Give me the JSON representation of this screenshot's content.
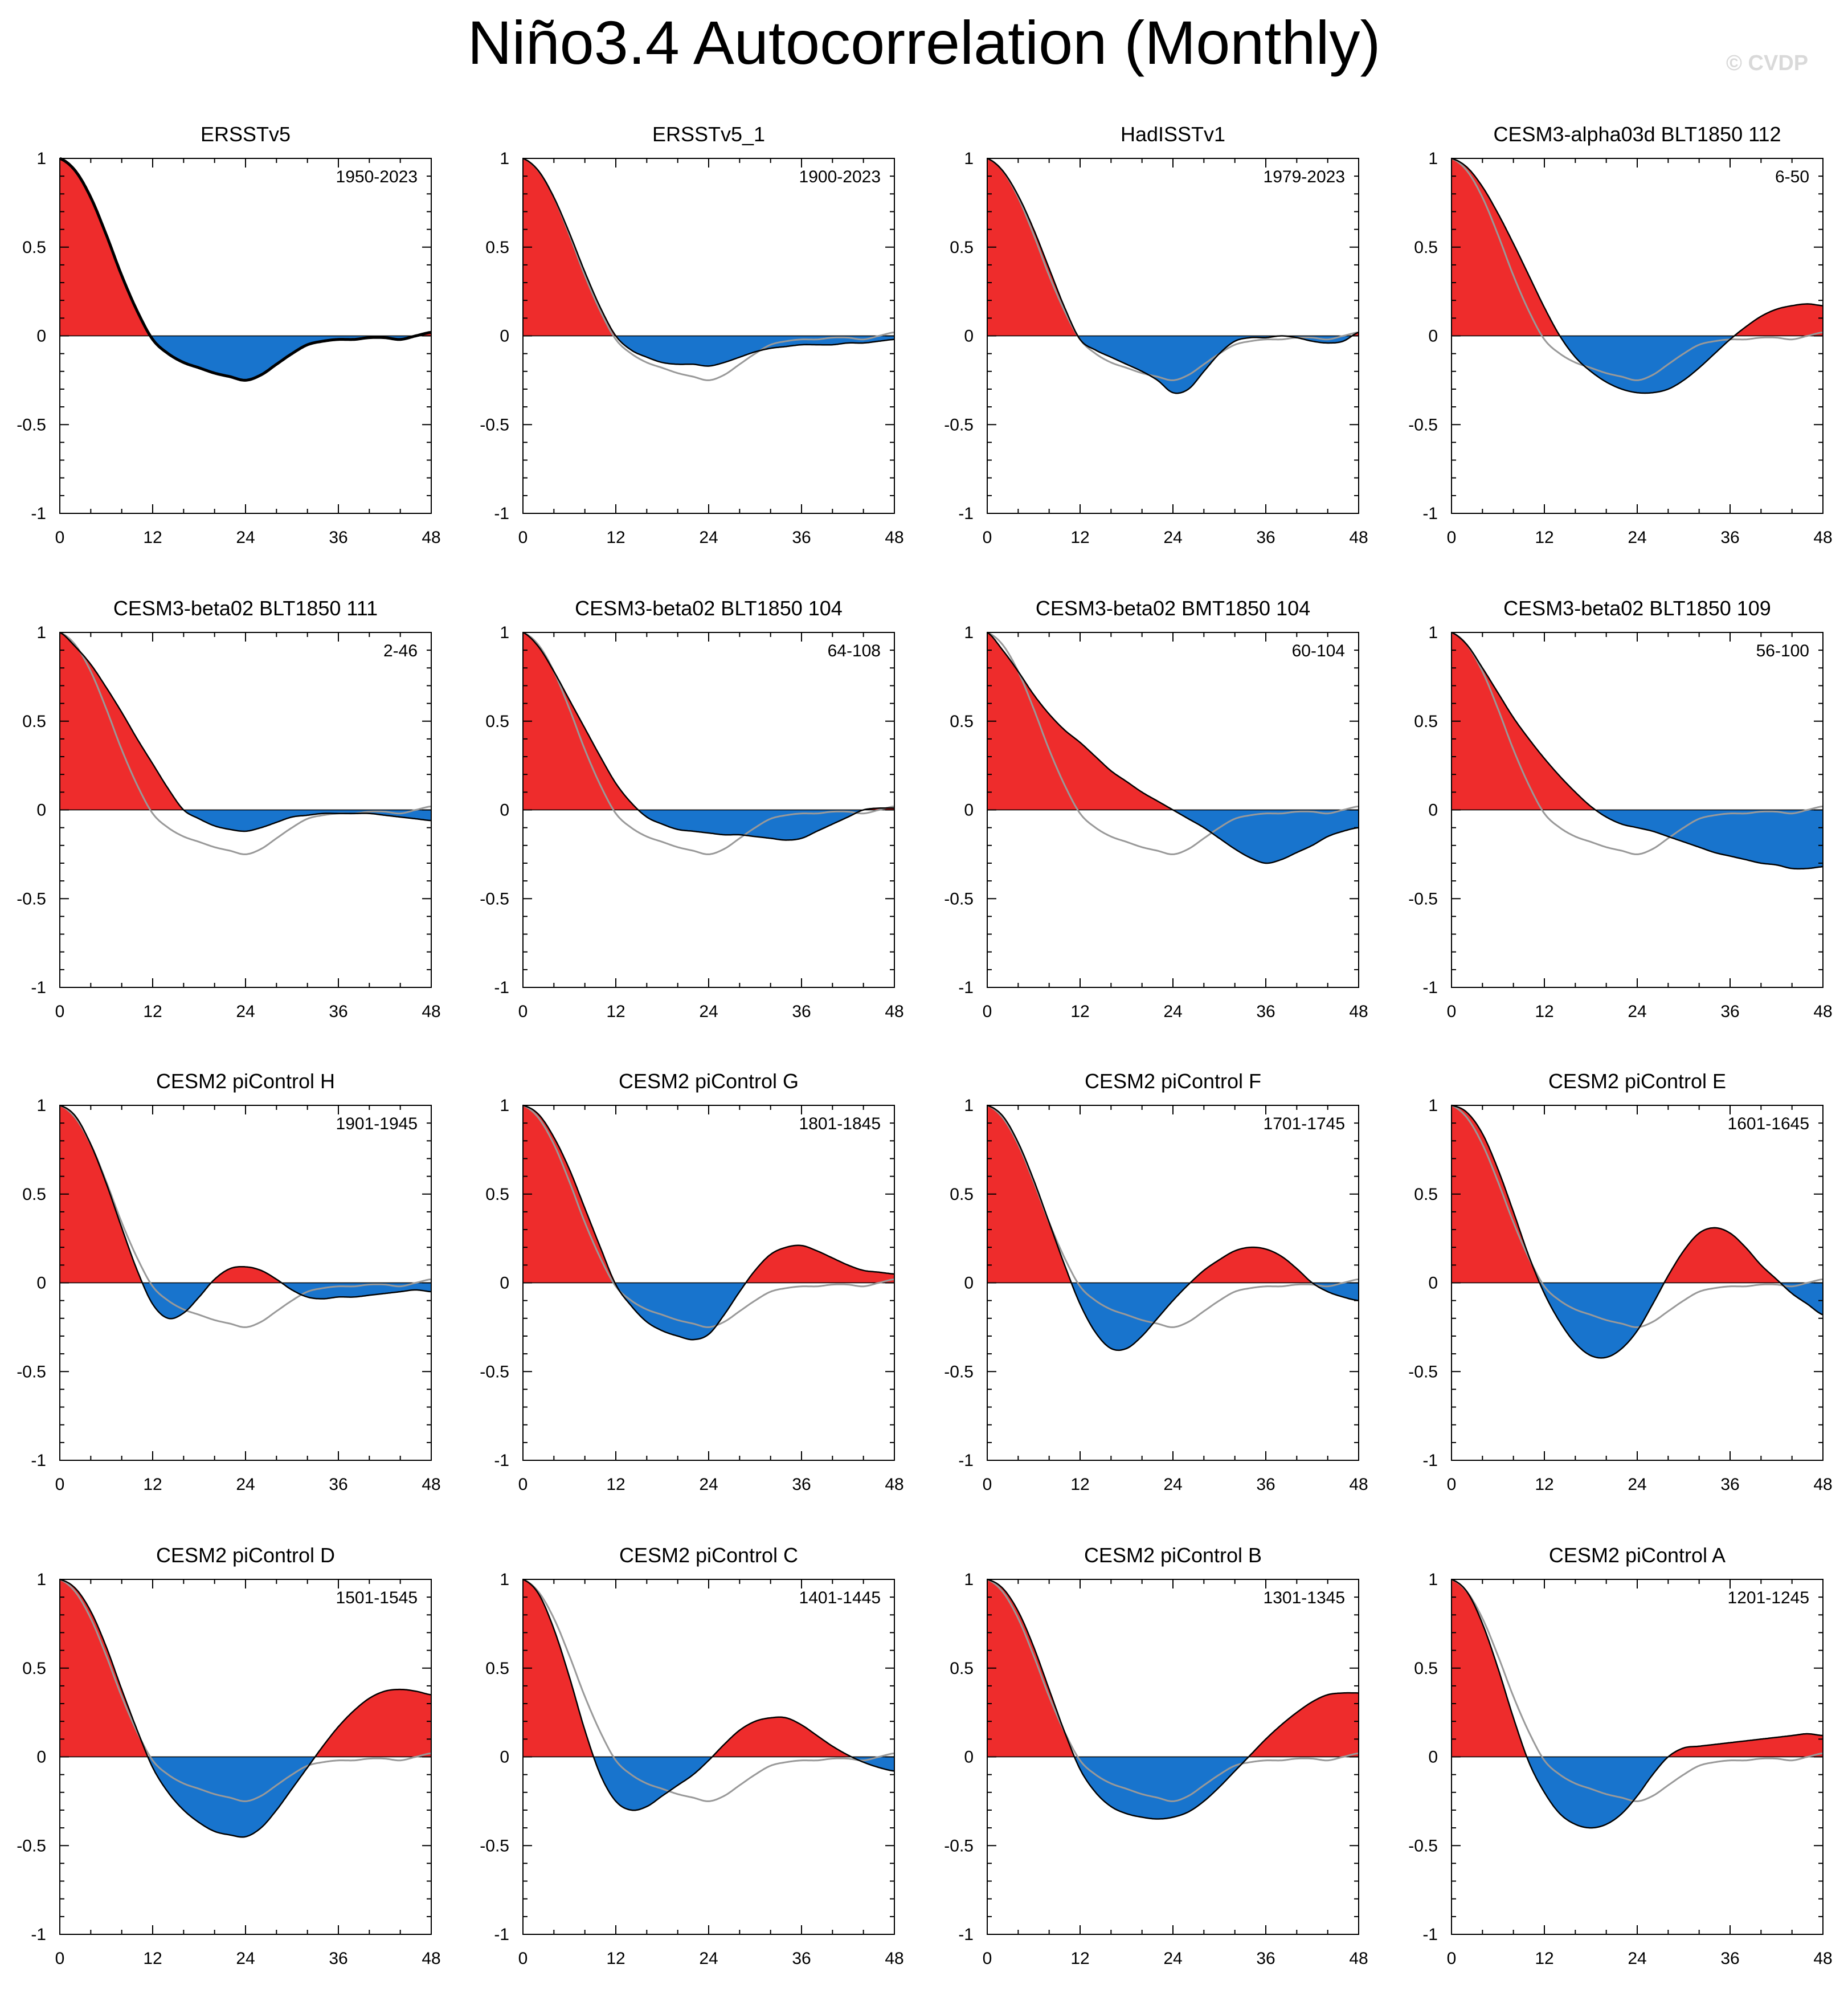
{
  "title": "Niño3.4 Autocorrelation (Monthly)",
  "watermark": "© CVDP",
  "colors": {
    "positive": "#ee2c2c",
    "negative": "#1874cd",
    "reference": "#999999",
    "line": "#000000"
  },
  "chart_data": [
    {
      "type": "area",
      "title": "ERSSTv5",
      "period": "1950-2023",
      "x": [
        0,
        2,
        4,
        6,
        8,
        10,
        12,
        14,
        16,
        18,
        20,
        22,
        24,
        26,
        28,
        30,
        32,
        34,
        36,
        38,
        40,
        42,
        44,
        46,
        48
      ],
      "values": [
        1,
        0.93,
        0.78,
        0.57,
        0.34,
        0.14,
        -0.02,
        -0.1,
        -0.15,
        -0.18,
        -0.21,
        -0.23,
        -0.25,
        -0.22,
        -0.16,
        -0.1,
        -0.05,
        -0.03,
        -0.02,
        -0.02,
        -0.01,
        -0.01,
        -0.02,
        0,
        0.02
      ],
      "xlim": [
        0,
        48
      ],
      "ylim": [
        -1,
        1
      ],
      "xticks": [
        "0",
        "12",
        "24",
        "36",
        "48"
      ],
      "yticks": [
        "1",
        "0.5",
        "0",
        "-0.5",
        "-1"
      ]
    },
    {
      "type": "area",
      "title": "ERSSTv5_1",
      "period": "1900-2023",
      "x": [
        0,
        2,
        4,
        6,
        8,
        10,
        12,
        14,
        16,
        18,
        20,
        22,
        24,
        26,
        28,
        30,
        32,
        34,
        36,
        38,
        40,
        42,
        44,
        46,
        48
      ],
      "values": [
        1,
        0.93,
        0.78,
        0.58,
        0.36,
        0.16,
        0,
        -0.08,
        -0.12,
        -0.15,
        -0.16,
        -0.16,
        -0.17,
        -0.15,
        -0.12,
        -0.09,
        -0.07,
        -0.06,
        -0.05,
        -0.05,
        -0.05,
        -0.04,
        -0.04,
        -0.03,
        -0.02
      ],
      "xlim": [
        0,
        48
      ],
      "ylim": [
        -1,
        1
      ],
      "xticks": [
        "0",
        "12",
        "24",
        "36",
        "48"
      ],
      "yticks": [
        "1",
        "0.5",
        "0",
        "-0.5",
        "-1"
      ]
    },
    {
      "type": "area",
      "title": "HadISSTv1",
      "period": "1979-2023",
      "x": [
        0,
        2,
        4,
        6,
        8,
        10,
        12,
        14,
        16,
        18,
        20,
        22,
        24,
        26,
        28,
        30,
        32,
        34,
        36,
        38,
        40,
        42,
        44,
        46,
        48
      ],
      "values": [
        1,
        0.93,
        0.79,
        0.6,
        0.38,
        0.16,
        -0.02,
        -0.08,
        -0.12,
        -0.16,
        -0.2,
        -0.25,
        -0.32,
        -0.3,
        -0.2,
        -0.1,
        -0.03,
        -0.01,
        -0.01,
        0,
        -0.01,
        -0.03,
        -0.04,
        -0.03,
        0.02
      ],
      "xlim": [
        0,
        48
      ],
      "ylim": [
        -1,
        1
      ],
      "xticks": [
        "0",
        "12",
        "24",
        "36",
        "48"
      ],
      "yticks": [
        "1",
        "0.5",
        "0",
        "-0.5",
        "-1"
      ]
    },
    {
      "type": "area",
      "title": "CESM3-alpha03d BLT1850 112",
      "period": "6-50",
      "x": [
        0,
        2,
        4,
        6,
        8,
        10,
        12,
        14,
        16,
        18,
        20,
        22,
        24,
        26,
        28,
        30,
        32,
        34,
        36,
        38,
        40,
        42,
        44,
        46,
        48
      ],
      "values": [
        1,
        0.95,
        0.84,
        0.69,
        0.52,
        0.34,
        0.16,
        0,
        -0.12,
        -0.2,
        -0.26,
        -0.3,
        -0.32,
        -0.32,
        -0.3,
        -0.25,
        -0.18,
        -0.1,
        -0.02,
        0.05,
        0.11,
        0.15,
        0.17,
        0.18,
        0.17
      ],
      "xlim": [
        0,
        48
      ],
      "ylim": [
        -1,
        1
      ],
      "xticks": [
        "0",
        "12",
        "24",
        "36",
        "48"
      ],
      "yticks": [
        "1",
        "0.5",
        "0",
        "-0.5",
        "-1"
      ]
    },
    {
      "type": "area",
      "title": "CESM3-beta02 BLT1850 111",
      "period": "2-46",
      "x": [
        0,
        2,
        4,
        6,
        8,
        10,
        12,
        14,
        16,
        18,
        20,
        22,
        24,
        26,
        28,
        30,
        32,
        34,
        36,
        38,
        40,
        42,
        44,
        46,
        48
      ],
      "values": [
        1,
        0.92,
        0.82,
        0.69,
        0.55,
        0.4,
        0.26,
        0.12,
        0,
        -0.05,
        -0.09,
        -0.11,
        -0.12,
        -0.1,
        -0.07,
        -0.04,
        -0.03,
        -0.02,
        -0.02,
        -0.02,
        -0.02,
        -0.03,
        -0.04,
        -0.05,
        -0.06
      ],
      "xlim": [
        0,
        48
      ],
      "ylim": [
        -1,
        1
      ],
      "xticks": [
        "0",
        "12",
        "24",
        "36",
        "48"
      ],
      "yticks": [
        "1",
        "0.5",
        "0",
        "-0.5",
        "-1"
      ]
    },
    {
      "type": "area",
      "title": "CESM3-beta02 BLT1850 104",
      "period": "64-108",
      "x": [
        0,
        2,
        4,
        6,
        8,
        10,
        12,
        14,
        16,
        18,
        20,
        22,
        24,
        26,
        28,
        30,
        32,
        34,
        36,
        38,
        40,
        42,
        44,
        46,
        48
      ],
      "values": [
        1,
        0.92,
        0.78,
        0.62,
        0.46,
        0.3,
        0.15,
        0.04,
        -0.04,
        -0.08,
        -0.11,
        -0.12,
        -0.13,
        -0.14,
        -0.14,
        -0.15,
        -0.16,
        -0.17,
        -0.16,
        -0.12,
        -0.08,
        -0.04,
        0,
        0.01,
        0.01
      ],
      "xlim": [
        0,
        48
      ],
      "ylim": [
        -1,
        1
      ],
      "xticks": [
        "0",
        "12",
        "24",
        "36",
        "48"
      ],
      "yticks": [
        "1",
        "0.5",
        "0",
        "-0.5",
        "-1"
      ]
    },
    {
      "type": "area",
      "title": "CESM3-beta02 BMT1850 104",
      "period": "60-104",
      "x": [
        0,
        2,
        4,
        6,
        8,
        10,
        12,
        14,
        16,
        18,
        20,
        22,
        24,
        26,
        28,
        30,
        32,
        34,
        36,
        38,
        40,
        42,
        44,
        46,
        48
      ],
      "values": [
        1,
        0.9,
        0.78,
        0.65,
        0.54,
        0.45,
        0.38,
        0.3,
        0.22,
        0.16,
        0.1,
        0.05,
        0,
        -0.05,
        -0.1,
        -0.16,
        -0.22,
        -0.27,
        -0.3,
        -0.28,
        -0.24,
        -0.2,
        -0.15,
        -0.12,
        -0.1
      ],
      "xlim": [
        0,
        48
      ],
      "ylim": [
        -1,
        1
      ],
      "xticks": [
        "0",
        "12",
        "24",
        "36",
        "48"
      ],
      "yticks": [
        "1",
        "0.5",
        "0",
        "-0.5",
        "-1"
      ]
    },
    {
      "type": "area",
      "title": "CESM3-beta02 BLT1850 109",
      "period": "56-100",
      "x": [
        0,
        2,
        4,
        6,
        8,
        10,
        12,
        14,
        16,
        18,
        20,
        22,
        24,
        26,
        28,
        30,
        32,
        34,
        36,
        38,
        40,
        42,
        44,
        46,
        48
      ],
      "values": [
        1,
        0.93,
        0.8,
        0.66,
        0.52,
        0.4,
        0.29,
        0.19,
        0.1,
        0.02,
        -0.04,
        -0.08,
        -0.1,
        -0.12,
        -0.15,
        -0.18,
        -0.21,
        -0.24,
        -0.26,
        -0.28,
        -0.3,
        -0.31,
        -0.33,
        -0.33,
        -0.32
      ],
      "xlim": [
        0,
        48
      ],
      "ylim": [
        -1,
        1
      ],
      "xticks": [
        "0",
        "12",
        "24",
        "36",
        "48"
      ],
      "yticks": [
        "1",
        "0.5",
        "0",
        "-0.5",
        "-1"
      ]
    },
    {
      "type": "area",
      "title": "CESM2 piControl H",
      "period": "1901-1945",
      "x": [
        0,
        2,
        4,
        6,
        8,
        10,
        12,
        14,
        16,
        18,
        20,
        22,
        24,
        26,
        28,
        30,
        32,
        34,
        36,
        38,
        40,
        42,
        44,
        46,
        48
      ],
      "values": [
        1,
        0.94,
        0.78,
        0.56,
        0.31,
        0.07,
        -0.12,
        -0.2,
        -0.17,
        -0.08,
        0.02,
        0.08,
        0.09,
        0.07,
        0.02,
        -0.04,
        -0.08,
        -0.09,
        -0.08,
        -0.08,
        -0.07,
        -0.06,
        -0.05,
        -0.04,
        -0.05
      ],
      "xlim": [
        0,
        48
      ],
      "ylim": [
        -1,
        1
      ],
      "xticks": [
        "0",
        "12",
        "24",
        "36",
        "48"
      ],
      "yticks": [
        "1",
        "0.5",
        "0",
        "-0.5",
        "-1"
      ]
    },
    {
      "type": "area",
      "title": "CESM2 piControl G",
      "period": "1801-1845",
      "x": [
        0,
        2,
        4,
        6,
        8,
        10,
        12,
        14,
        16,
        18,
        20,
        22,
        24,
        26,
        28,
        30,
        32,
        34,
        36,
        38,
        40,
        42,
        44,
        46,
        48
      ],
      "values": [
        1,
        0.95,
        0.82,
        0.64,
        0.42,
        0.2,
        -0.01,
        -0.13,
        -0.22,
        -0.27,
        -0.3,
        -0.32,
        -0.29,
        -0.18,
        -0.05,
        0.07,
        0.16,
        0.2,
        0.21,
        0.18,
        0.14,
        0.1,
        0.07,
        0.06,
        0.05
      ],
      "xlim": [
        0,
        48
      ],
      "ylim": [
        -1,
        1
      ],
      "xticks": [
        "0",
        "12",
        "24",
        "36",
        "48"
      ],
      "yticks": [
        "1",
        "0.5",
        "0",
        "-0.5",
        "-1"
      ]
    },
    {
      "type": "area",
      "title": "CESM2 piControl F",
      "period": "1701-1745",
      "x": [
        0,
        2,
        4,
        6,
        8,
        10,
        12,
        14,
        16,
        18,
        20,
        22,
        24,
        26,
        28,
        30,
        32,
        34,
        36,
        38,
        40,
        42,
        44,
        46,
        48
      ],
      "values": [
        1,
        0.94,
        0.79,
        0.58,
        0.34,
        0.1,
        -0.12,
        -0.28,
        -0.37,
        -0.37,
        -0.3,
        -0.2,
        -0.1,
        -0.01,
        0.07,
        0.13,
        0.18,
        0.2,
        0.19,
        0.15,
        0.08,
        0,
        -0.05,
        -0.08,
        -0.1
      ],
      "xlim": [
        0,
        48
      ],
      "ylim": [
        -1,
        1
      ],
      "xticks": [
        "0",
        "12",
        "24",
        "36",
        "48"
      ],
      "yticks": [
        "1",
        "0.5",
        "0",
        "-0.5",
        "-1"
      ]
    },
    {
      "type": "area",
      "title": "CESM2 piControl E",
      "period": "1601-1645",
      "x": [
        0,
        2,
        4,
        6,
        8,
        10,
        12,
        14,
        16,
        18,
        20,
        22,
        24,
        26,
        28,
        30,
        32,
        34,
        36,
        38,
        40,
        42,
        44,
        46,
        48
      ],
      "values": [
        1,
        0.96,
        0.84,
        0.64,
        0.4,
        0.15,
        -0.06,
        -0.22,
        -0.34,
        -0.41,
        -0.42,
        -0.37,
        -0.27,
        -0.12,
        0.04,
        0.18,
        0.28,
        0.31,
        0.28,
        0.2,
        0.1,
        0.02,
        -0.06,
        -0.12,
        -0.18
      ],
      "xlim": [
        0,
        48
      ],
      "ylim": [
        -1,
        1
      ],
      "xticks": [
        "0",
        "12",
        "24",
        "36",
        "48"
      ],
      "yticks": [
        "1",
        "0.5",
        "0",
        "-0.5",
        "-1"
      ]
    },
    {
      "type": "area",
      "title": "CESM2 piControl D",
      "period": "1501-1545",
      "x": [
        0,
        2,
        4,
        6,
        8,
        10,
        12,
        14,
        16,
        18,
        20,
        22,
        24,
        26,
        28,
        30,
        32,
        34,
        36,
        38,
        40,
        42,
        44,
        46,
        48
      ],
      "values": [
        1,
        0.95,
        0.82,
        0.62,
        0.38,
        0.15,
        -0.06,
        -0.2,
        -0.3,
        -0.37,
        -0.42,
        -0.44,
        -0.45,
        -0.4,
        -0.3,
        -0.18,
        -0.06,
        0.06,
        0.17,
        0.26,
        0.33,
        0.37,
        0.38,
        0.37,
        0.35
      ],
      "xlim": [
        0,
        48
      ],
      "ylim": [
        -1,
        1
      ],
      "xticks": [
        "0",
        "12",
        "24",
        "36",
        "48"
      ],
      "yticks": [
        "1",
        "0.5",
        "0",
        "-0.5",
        "-1"
      ]
    },
    {
      "type": "area",
      "title": "CESM2 piControl C",
      "period": "1401-1445",
      "x": [
        0,
        2,
        4,
        6,
        8,
        10,
        12,
        14,
        16,
        18,
        20,
        22,
        24,
        26,
        28,
        30,
        32,
        34,
        36,
        38,
        40,
        42,
        44,
        46,
        48
      ],
      "values": [
        1,
        0.92,
        0.72,
        0.45,
        0.15,
        -0.1,
        -0.25,
        -0.3,
        -0.28,
        -0.22,
        -0.16,
        -0.1,
        -0.02,
        0.07,
        0.15,
        0.2,
        0.22,
        0.22,
        0.18,
        0.12,
        0.06,
        0.01,
        -0.03,
        -0.06,
        -0.08
      ],
      "xlim": [
        0,
        48
      ],
      "ylim": [
        -1,
        1
      ],
      "xticks": [
        "0",
        "12",
        "24",
        "36",
        "48"
      ],
      "yticks": [
        "1",
        "0.5",
        "0",
        "-0.5",
        "-1"
      ]
    },
    {
      "type": "area",
      "title": "CESM2 piControl B",
      "period": "1301-1345",
      "x": [
        0,
        2,
        4,
        6,
        8,
        10,
        12,
        14,
        16,
        18,
        20,
        22,
        24,
        26,
        28,
        30,
        32,
        34,
        36,
        38,
        40,
        42,
        44,
        46,
        48
      ],
      "values": [
        1,
        0.95,
        0.82,
        0.62,
        0.38,
        0.14,
        -0.07,
        -0.2,
        -0.28,
        -0.32,
        -0.34,
        -0.35,
        -0.34,
        -0.31,
        -0.25,
        -0.17,
        -0.08,
        0.01,
        0.1,
        0.18,
        0.25,
        0.31,
        0.35,
        0.36,
        0.36
      ],
      "xlim": [
        0,
        48
      ],
      "ylim": [
        -1,
        1
      ],
      "xticks": [
        "0",
        "12",
        "24",
        "36",
        "48"
      ],
      "yticks": [
        "1",
        "0.5",
        "0",
        "-0.5",
        "-1"
      ]
    },
    {
      "type": "area",
      "title": "CESM2 piControl A",
      "period": "1201-1245",
      "x": [
        0,
        2,
        4,
        6,
        8,
        10,
        12,
        14,
        16,
        18,
        20,
        22,
        24,
        26,
        28,
        30,
        32,
        34,
        36,
        38,
        40,
        42,
        44,
        46,
        48
      ],
      "values": [
        1,
        0.93,
        0.75,
        0.5,
        0.22,
        -0.03,
        -0.2,
        -0.32,
        -0.38,
        -0.4,
        -0.38,
        -0.32,
        -0.22,
        -0.1,
        0,
        0.05,
        0.06,
        0.07,
        0.08,
        0.09,
        0.1,
        0.11,
        0.12,
        0.13,
        0.12
      ],
      "xlim": [
        0,
        48
      ],
      "ylim": [
        -1,
        1
      ],
      "xticks": [
        "0",
        "12",
        "24",
        "36",
        "48"
      ],
      "yticks": [
        "1",
        "0.5",
        "0",
        "-0.5",
        "-1"
      ]
    }
  ],
  "reference_series": {
    "name": "ERSSTv5",
    "x": [
      0,
      2,
      4,
      6,
      8,
      10,
      12,
      14,
      16,
      18,
      20,
      22,
      24,
      26,
      28,
      30,
      32,
      34,
      36,
      38,
      40,
      42,
      44,
      46,
      48
    ],
    "values": [
      1,
      0.93,
      0.78,
      0.57,
      0.34,
      0.14,
      -0.02,
      -0.1,
      -0.15,
      -0.18,
      -0.21,
      -0.23,
      -0.25,
      -0.22,
      -0.16,
      -0.1,
      -0.05,
      -0.03,
      -0.02,
      -0.02,
      -0.01,
      -0.01,
      -0.02,
      0,
      0.02
    ]
  }
}
